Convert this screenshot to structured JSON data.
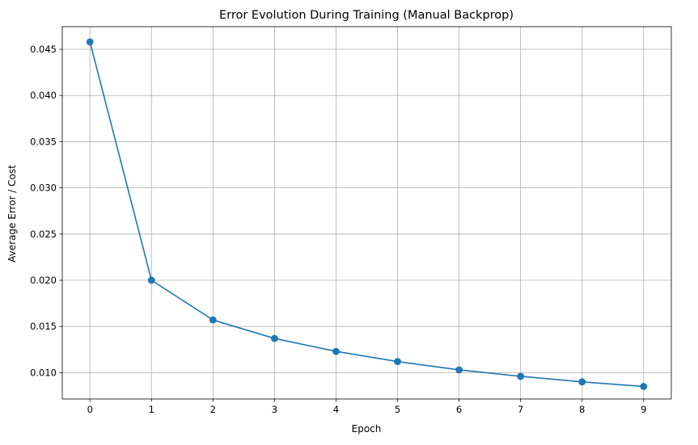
{
  "chart_data": {
    "type": "line",
    "title": "Error Evolution During Training (Manual Backprop)",
    "xlabel": "Epoch",
    "ylabel": "Average Error / Cost",
    "x": [
      0,
      1,
      2,
      3,
      4,
      5,
      6,
      7,
      8,
      9
    ],
    "series": [
      {
        "values": [
          0.0458,
          0.02,
          0.0157,
          0.0137,
          0.0123,
          0.0112,
          0.0103,
          0.0096,
          0.009,
          0.0085
        ]
      }
    ],
    "xlim": [
      -0.45,
      9.45
    ],
    "ylim": [
      0.00715,
      0.04745
    ],
    "x_ticks": [
      0,
      1,
      2,
      3,
      4,
      5,
      6,
      7,
      8,
      9
    ],
    "x_tick_labels": [
      "0",
      "1",
      "2",
      "3",
      "4",
      "5",
      "6",
      "7",
      "8",
      "9"
    ],
    "y_ticks": [
      0.01,
      0.015,
      0.02,
      0.025,
      0.03,
      0.035,
      0.04,
      0.045
    ],
    "y_tick_labels": [
      "0.010",
      "0.015",
      "0.020",
      "0.025",
      "0.030",
      "0.035",
      "0.040",
      "0.045"
    ],
    "grid": true,
    "marker": "circle",
    "colors": {
      "line": "#1f77b4",
      "grid": "#b0b0b0",
      "axis": "#000000"
    }
  }
}
